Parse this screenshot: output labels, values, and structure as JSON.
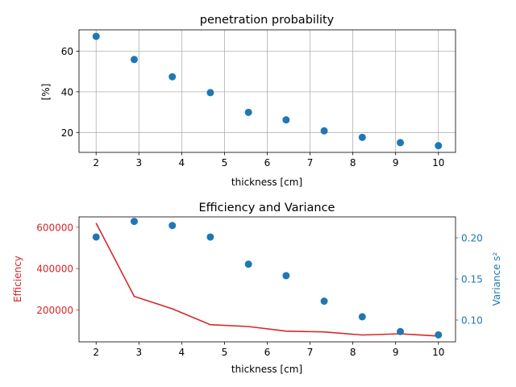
{
  "chart_data": [
    {
      "type": "scatter",
      "title": "penetration probability",
      "xlabel": "thickness [cm]",
      "ylabel": "[%]",
      "xlim": [
        1.6,
        10.4
      ],
      "ylim": [
        10.2,
        70.5
      ],
      "xticks": [
        2,
        3,
        4,
        5,
        6,
        7,
        8,
        9,
        10
      ],
      "yticks": [
        20,
        40,
        60
      ],
      "grid": true,
      "series": [
        {
          "color": "#1f77b4",
          "x": [
            2.0,
            2.89,
            3.78,
            4.67,
            5.56,
            6.44,
            7.33,
            8.22,
            9.11,
            10.0
          ],
          "y": [
            67.3,
            55.9,
            47.4,
            39.6,
            29.9,
            26.2,
            20.8,
            17.6,
            15.0,
            13.5
          ]
        }
      ]
    },
    {
      "type": "line",
      "title": "Efficiency and Variance",
      "xlabel": "thickness [cm]",
      "ylabel": "Efficiency",
      "y2label": "Variance s²",
      "xlim": [
        1.6,
        10.4
      ],
      "ylim": [
        45000,
        650000
      ],
      "y2lim": [
        0.0735,
        0.2255
      ],
      "xticks": [
        2,
        3,
        4,
        5,
        6,
        7,
        8,
        9,
        10
      ],
      "yticks": [
        200000,
        400000,
        600000
      ],
      "y2ticks": [
        0.1,
        0.15,
        0.2
      ],
      "grid": false,
      "efficiency_color": "#d62728",
      "variance_color": "#1f77b4",
      "series": [
        {
          "axis": "left",
          "kind": "line",
          "color": "#d62728",
          "x": [
            2.0,
            2.89,
            3.78,
            4.67,
            5.56,
            6.44,
            7.33,
            8.22,
            9.11,
            10.0
          ],
          "y": [
            620000,
            265000,
            205000,
            128000,
            119000,
            97000,
            93000,
            78000,
            84000,
            73000
          ]
        },
        {
          "axis": "right",
          "kind": "scatter",
          "color": "#1f77b4",
          "x": [
            2.0,
            2.89,
            3.78,
            4.67,
            5.56,
            6.44,
            7.33,
            8.22,
            9.11,
            10.0
          ],
          "y": [
            0.201,
            0.22,
            0.215,
            0.201,
            0.168,
            0.154,
            0.123,
            0.104,
            0.086,
            0.082
          ]
        }
      ]
    }
  ]
}
